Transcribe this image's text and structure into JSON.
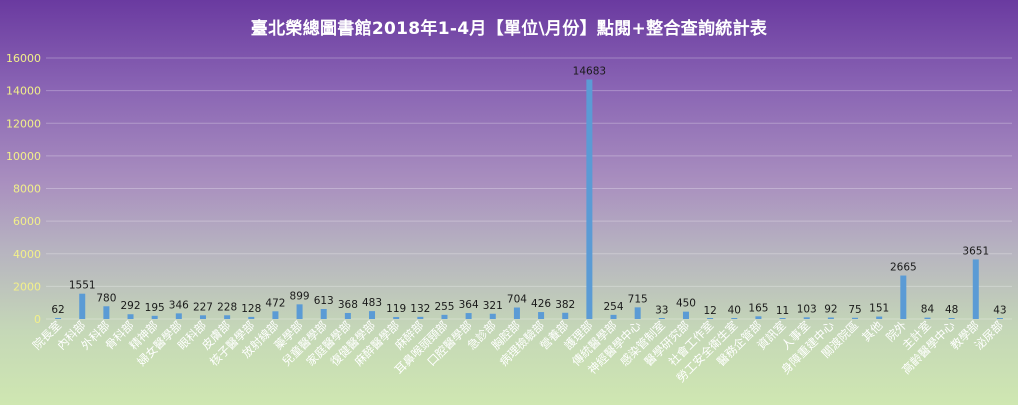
{
  "chart_data": {
    "type": "bar",
    "title": "臺北榮總圖書館2018年1-4月【單位\\月份】點閱+整合查詢統計表",
    "xlabel": "",
    "ylabel": "",
    "ylim": [
      0,
      16000
    ],
    "yticks": [
      0,
      2000,
      4000,
      6000,
      8000,
      10000,
      12000,
      14000,
      16000
    ],
    "grid": true,
    "legend": "none",
    "bar_color": "#5b9bd5",
    "categories": [
      "院長室",
      "內科部",
      "外科部",
      "骨科部",
      "精神部",
      "婦女醫學部",
      "眼科部",
      "皮膚部",
      "核子醫學部",
      "放射線部",
      "藥學部",
      "兒童醫學部",
      "家庭醫學部",
      "復健醫學部",
      "麻醉醫學部",
      "麻醉部",
      "耳鼻喉頭頸部",
      "口腔醫學部",
      "急診部",
      "胸腔部",
      "病理檢驗部",
      "營養部",
      "護理部",
      "傳統醫學部",
      "神經醫學中心",
      "感染管制室",
      "醫學研究部",
      "社會工作室",
      "勞工安全衛生室",
      "醫務企管部",
      "資訊室",
      "人事室",
      "身障重建中心",
      "關渡院區",
      "其他",
      "院外",
      "主計室",
      "高齡醫學中心",
      "教學部",
      "泌尿部"
    ],
    "values": [
      62,
      1551,
      780,
      292,
      195,
      346,
      227,
      228,
      128,
      472,
      899,
      613,
      368,
      483,
      119,
      132,
      255,
      364,
      321,
      704,
      426,
      382,
      14683,
      254,
      715,
      33,
      450,
      12,
      40,
      165,
      11,
      103,
      92,
      75,
      151,
      2665,
      84,
      48,
      3651,
      43
    ]
  }
}
